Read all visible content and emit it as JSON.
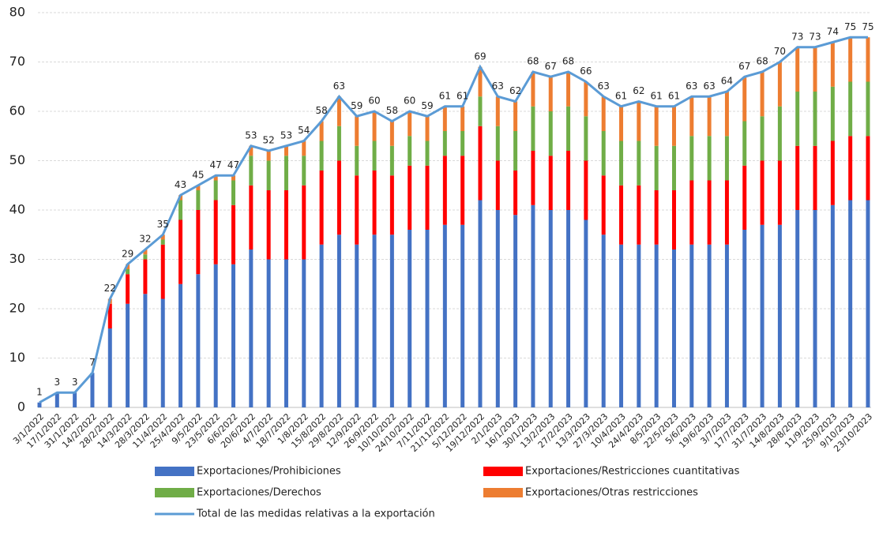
{
  "chart_data": {
    "type": "bar",
    "stacked": true,
    "categories": [
      "3/1/2022",
      "17/1/2022",
      "31/1/2022",
      "14/2/2022",
      "28/2/2022",
      "14/3/2022",
      "28/3/2022",
      "11/4/2022",
      "25/4/2022",
      "9/5/2022",
      "23/5/2022",
      "6/6/2022",
      "20/6/2022",
      "4/7/2022",
      "18/7/2022",
      "1/8/2022",
      "15/8/2022",
      "29/8/2022",
      "12/9/2022",
      "26/9/2022",
      "10/10/2022",
      "24/10/2022",
      "7/11/2022",
      "21/11/2022",
      "5/12/2022",
      "19/12/2022",
      "2/1/2023",
      "16/1/2023",
      "30/1/2023",
      "13/2/2023",
      "27/2/2023",
      "13/3/2023",
      "27/3/2023",
      "10/4/2023",
      "24/4/2023",
      "8/5/2023",
      "22/5/2023",
      "5/6/2023",
      "19/6/2023",
      "3/7/2023",
      "17/7/2023",
      "31/7/2023",
      "14/8/2023",
      "28/8/2023",
      "11/9/2023",
      "25/9/2023",
      "9/10/2023",
      "23/10/2023"
    ],
    "series": [
      {
        "name": "Exportaciones/Prohibiciones",
        "color": "#4472c4",
        "values": [
          1,
          3,
          3,
          7,
          16,
          21,
          23,
          22,
          25,
          27,
          29,
          29,
          32,
          30,
          30,
          30,
          33,
          35,
          33,
          35,
          35,
          36,
          36,
          37,
          37,
          42,
          40,
          39,
          41,
          40,
          40,
          38,
          35,
          33,
          33,
          33,
          32,
          33,
          33,
          33,
          36,
          37,
          37,
          40,
          40,
          41,
          42,
          42
        ]
      },
      {
        "name": "Exportaciones/Restricciones cuantitativas",
        "color": "#ff0000",
        "values": [
          0,
          0,
          0,
          0,
          5,
          6,
          7,
          11,
          13,
          13,
          13,
          12,
          13,
          14,
          14,
          15,
          15,
          15,
          14,
          13,
          12,
          13,
          13,
          14,
          14,
          15,
          10,
          9,
          11,
          11,
          12,
          12,
          12,
          12,
          12,
          11,
          12,
          13,
          13,
          13,
          13,
          13,
          13,
          13,
          13,
          13,
          13,
          13
        ]
      },
      {
        "name": "Exportaciones/Derechos",
        "color": "#70ad47",
        "values": [
          0,
          0,
          0,
          0,
          0,
          1,
          1,
          1,
          4,
          4,
          4,
          5,
          6,
          6,
          7,
          6,
          6,
          7,
          6,
          6,
          6,
          6,
          5,
          5,
          5,
          6,
          7,
          8,
          9,
          9,
          9,
          9,
          9,
          9,
          9,
          9,
          9,
          9,
          9,
          9,
          9,
          9,
          11,
          11,
          11,
          11,
          11,
          11
        ]
      },
      {
        "name": "Exportaciones/Otras restricciones",
        "color": "#ed7d31",
        "values": [
          0,
          0,
          0,
          0,
          1,
          1,
          1,
          1,
          1,
          1,
          1,
          1,
          2,
          2,
          2,
          3,
          4,
          6,
          6,
          6,
          5,
          5,
          5,
          5,
          5,
          6,
          6,
          6,
          7,
          7,
          7,
          7,
          7,
          7,
          8,
          8,
          8,
          8,
          8,
          9,
          9,
          9,
          9,
          9,
          9,
          9,
          9,
          9
        ]
      },
      {
        "name": "Total de las medidas relativas a la exportación",
        "type": "line",
        "color": "#5b9bd5",
        "values": [
          1,
          3,
          3,
          7,
          22,
          29,
          32,
          35,
          43,
          45,
          47,
          47,
          53,
          52,
          53,
          54,
          58,
          63,
          59,
          60,
          58,
          60,
          59,
          61,
          61,
          69,
          63,
          62,
          68,
          67,
          68,
          66,
          63,
          61,
          62,
          61,
          61,
          63,
          63,
          64,
          67,
          68,
          70,
          73,
          73,
          74,
          75,
          75
        ]
      }
    ],
    "ylim": [
      0,
      80
    ],
    "yticks": [
      0,
      10,
      20,
      30,
      40,
      50,
      60,
      70,
      80
    ],
    "grid": true,
    "legend": "bottom"
  }
}
